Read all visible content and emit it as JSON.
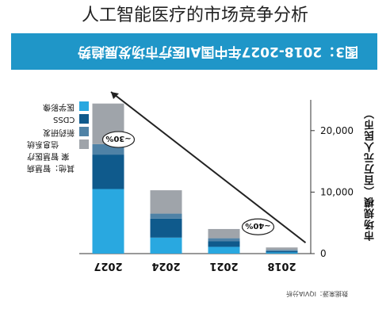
{
  "caption": "人工智能医疗的市场竞争分析",
  "banner": {
    "title": "图3：2018-2027年中国AI医疗市场发展趋势",
    "color": "#1f96c8"
  },
  "source": "数据来源：IQVIA分析",
  "chart_data": {
    "type": "bar",
    "stacked": true,
    "title": "图3：2018-2027年中国AI医疗市场发展趋势",
    "ylabel": "市场规模（百万元人民币）",
    "categories": [
      "2018",
      "2021",
      "2024",
      "2027"
    ],
    "ylim": [
      0,
      25000
    ],
    "yticks": [
      "0",
      "10,000",
      "20,000"
    ],
    "series": [
      {
        "name": "医学影像",
        "color": "#29a8e0",
        "values": [
          200,
          1100,
          2600,
          10500
        ]
      },
      {
        "name": "CDSS",
        "color": "#0f5a8c",
        "values": [
          200,
          900,
          3100,
          5600
        ]
      },
      {
        "name": "新药研发",
        "color": "#4f82a6",
        "values": [
          200,
          500,
          800,
          1700
        ]
      },
      {
        "name": "其他：智慧病案 智慧医疗信息系统",
        "color": "#9fa4aa",
        "values": [
          400,
          1500,
          3800,
          6600
        ]
      }
    ],
    "annotations": [
      {
        "text": "~40%",
        "between": [
          "2018",
          "2024"
        ]
      },
      {
        "text": "~30%",
        "between": [
          "2024",
          "2027"
        ]
      }
    ],
    "legend_position": "left"
  }
}
